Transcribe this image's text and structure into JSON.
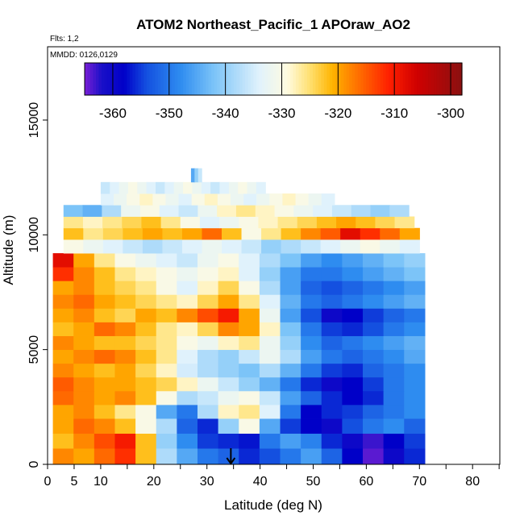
{
  "chart_data": {
    "type": "heatmap",
    "title": "ATOM2 Northeast_Pacific_1 APOraw_AO2",
    "flights_label": "Flts: 1,2",
    "dates_label": "MMDD: 0126,0129",
    "xlabel": "Latitude (deg N)",
    "ylabel": "Altitude (m)",
    "xlim": [
      0,
      85
    ],
    "ylim": [
      0,
      17500
    ],
    "x_ticks": [
      0,
      5,
      10,
      20,
      30,
      40,
      50,
      60,
      70,
      80
    ],
    "x_minor_ticks": [
      15,
      25,
      35,
      45,
      55,
      65,
      75,
      85
    ],
    "y_ticks": [
      0,
      5000,
      10000,
      15000
    ],
    "colorbar": {
      "min": -365,
      "max": -298,
      "ticks": [
        -360,
        -350,
        -340,
        -330,
        -320,
        -310,
        -300
      ],
      "colors": [
        "#7a1fd6",
        "#1a10c8",
        "#0000c8",
        "#1450e0",
        "#2e8cf0",
        "#7cc4f8",
        "#e0f2fc",
        "#fffbe0",
        "#ffe070",
        "#ffb400",
        "#ff7800",
        "#ff2000",
        "#d00000",
        "#8a1010"
      ],
      "stops": [
        -365,
        -362,
        -358,
        -354,
        -348,
        -342,
        -334,
        -329,
        -325,
        -321,
        -317,
        -311,
        -306,
        -298
      ]
    },
    "marker_latitude": 34.5,
    "layers": [
      {
        "alt": [
          0,
          700
        ],
        "lat": [
          1,
          71
        ],
        "values": [
          -318,
          -320,
          -316,
          -312,
          -322,
          -338,
          -345,
          -350,
          -352,
          -356,
          -354,
          -350,
          -346,
          -352,
          -358,
          -364,
          -360,
          -356
        ]
      },
      {
        "alt": [
          700,
          1350
        ],
        "lat": [
          1,
          71
        ],
        "values": [
          -322,
          -318,
          -314,
          -310,
          -322,
          -340,
          -348,
          -355,
          -356,
          -357,
          -350,
          -346,
          -349,
          -356,
          -360,
          -363,
          -358,
          -355
        ]
      },
      {
        "alt": [
          1350,
          2000
        ],
        "lat": [
          1,
          71
        ],
        "values": [
          -320,
          -316,
          -318,
          -322,
          -330,
          -338,
          -352,
          -356,
          -340,
          -330,
          -345,
          -355,
          -358,
          -360,
          -354,
          -350,
          -348,
          -352
        ]
      },
      {
        "alt": [
          2000,
          2600
        ],
        "lat": [
          1,
          71
        ],
        "values": [
          -320,
          -318,
          -322,
          -326,
          -330,
          -345,
          -350,
          -338,
          -328,
          -326,
          -334,
          -350,
          -358,
          -356,
          -355,
          -352,
          -350,
          -348
        ]
      },
      {
        "alt": [
          2600,
          3200
        ],
        "lat": [
          1,
          71
        ],
        "values": [
          -316,
          -318,
          -320,
          -318,
          -322,
          -330,
          -338,
          -336,
          -332,
          -330,
          -336,
          -346,
          -352,
          -356,
          -358,
          -356,
          -350,
          -348
        ]
      },
      {
        "alt": [
          3200,
          3800
        ],
        "lat": [
          1,
          71
        ],
        "values": [
          -315,
          -318,
          -320,
          -320,
          -322,
          -324,
          -328,
          -332,
          -336,
          -340,
          -344,
          -350,
          -356,
          -360,
          -358,
          -355,
          -350,
          -348
        ]
      },
      {
        "alt": [
          3800,
          4400
        ],
        "lat": [
          1,
          71
        ],
        "values": [
          -318,
          -320,
          -322,
          -320,
          -324,
          -328,
          -335,
          -338,
          -340,
          -342,
          -338,
          -344,
          -350,
          -355,
          -356,
          -352,
          -350,
          -348
        ]
      },
      {
        "alt": [
          4400,
          5000
        ],
        "lat": [
          1,
          71
        ],
        "values": [
          -320,
          -318,
          -316,
          -318,
          -322,
          -326,
          -334,
          -338,
          -340,
          -336,
          -332,
          -338,
          -346,
          -350,
          -352,
          -350,
          -348,
          -345
        ]
      },
      {
        "alt": [
          5000,
          5600
        ],
        "lat": [
          1,
          71
        ],
        "values": [
          -318,
          -320,
          -322,
          -322,
          -324,
          -326,
          -330,
          -332,
          -328,
          -326,
          -332,
          -340,
          -348,
          -352,
          -350,
          -348,
          -346,
          -344
        ]
      },
      {
        "alt": [
          5600,
          6200
        ],
        "lat": [
          1,
          71
        ],
        "values": [
          -322,
          -320,
          -316,
          -318,
          -322,
          -326,
          -328,
          -324,
          -318,
          -320,
          -328,
          -342,
          -350,
          -355,
          -356,
          -354,
          -350,
          -348
        ]
      },
      {
        "alt": [
          6200,
          6800
        ],
        "lat": [
          1,
          71
        ],
        "values": [
          -320,
          -318,
          -322,
          -324,
          -320,
          -322,
          -318,
          -314,
          -310,
          -320,
          -332,
          -346,
          -354,
          -360,
          -358,
          -355,
          -352,
          -350
        ]
      },
      {
        "alt": [
          6800,
          7400
        ],
        "lat": [
          1,
          71
        ],
        "values": [
          -318,
          -316,
          -320,
          -322,
          -324,
          -326,
          -328,
          -324,
          -320,
          -326,
          -334,
          -344,
          -350,
          -352,
          -350,
          -348,
          -346,
          -344
        ]
      },
      {
        "alt": [
          7400,
          8000
        ],
        "lat": [
          1,
          71
        ],
        "values": [
          -320,
          -318,
          -322,
          -324,
          -326,
          -330,
          -334,
          -328,
          -324,
          -330,
          -338,
          -346,
          -352,
          -354,
          -352,
          -350,
          -348,
          -346
        ]
      },
      {
        "alt": [
          8000,
          8600
        ],
        "lat": [
          1,
          71
        ],
        "values": [
          -312,
          -318,
          -322,
          -326,
          -328,
          -330,
          -332,
          -330,
          -328,
          -334,
          -340,
          -346,
          -350,
          -350,
          -348,
          -346,
          -344,
          -342
        ]
      },
      {
        "alt": [
          8600,
          9200
        ],
        "lat": [
          1,
          71
        ],
        "values": [
          -308,
          -320,
          -326,
          -330,
          -332,
          -334,
          -336,
          -332,
          -330,
          -334,
          -338,
          -342,
          -346,
          -348,
          -346,
          -344,
          -342,
          -340
        ]
      },
      {
        "alt": [
          9200,
          9800
        ],
        "lat": [
          3,
          70
        ],
        "values": [
          -330,
          -332,
          -334,
          -336,
          -338,
          -336,
          -334,
          -332,
          -334,
          -336,
          -340,
          -338,
          -336,
          -334,
          -332,
          -330,
          -332,
          -334
        ]
      },
      {
        "alt": [
          9800,
          10300
        ],
        "lat": [
          3,
          70
        ],
        "values": [
          -322,
          -326,
          -324,
          -322,
          -320,
          -322,
          -320,
          -316,
          -322,
          -330,
          -326,
          -322,
          -318,
          -315,
          -308,
          -312,
          -316,
          -320
        ]
      },
      {
        "alt": [
          10300,
          10800
        ],
        "lat": [
          3,
          69
        ],
        "values": [
          -326,
          -328,
          -326,
          -324,
          -322,
          -326,
          -330,
          -334,
          -332,
          -330,
          -328,
          -326,
          -324,
          -322,
          -320,
          -322,
          -324,
          -326
        ]
      },
      {
        "alt": [
          10800,
          11300
        ],
        "lat": [
          3,
          68
        ],
        "values": [
          -342,
          -344,
          -338,
          -332,
          -330,
          -334,
          -336,
          -332,
          -328,
          -326,
          -328,
          -330,
          -332,
          -334,
          -336,
          -338,
          -340,
          -338
        ]
      },
      {
        "alt": [
          11300,
          11800
        ],
        "lat": [
          10,
          54
        ],
        "values": [
          -334,
          -332,
          -330,
          -328,
          -330,
          -332,
          -334,
          -330,
          -328,
          -330,
          -332,
          -334,
          -332,
          -330,
          -328,
          -330,
          -332,
          -334
        ]
      },
      {
        "alt": [
          11800,
          12300
        ],
        "lat": [
          10,
          41
        ],
        "values": [
          -336,
          -334,
          -332,
          -330,
          -332,
          -334,
          -336,
          -334,
          -332,
          -330,
          -332,
          -334,
          -336,
          -334,
          -332,
          -330,
          -332,
          -334
        ]
      },
      {
        "alt": [
          12300,
          12900
        ],
        "lat": [
          27,
          29
        ],
        "values": [
          -345,
          -340,
          -336
        ]
      }
    ]
  }
}
